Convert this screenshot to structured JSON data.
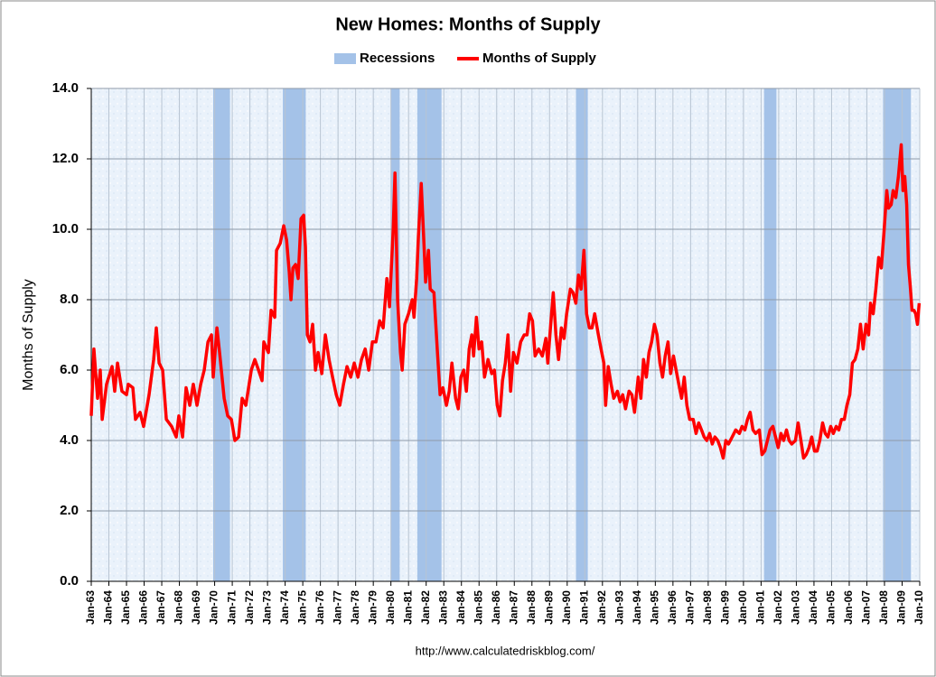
{
  "chart_data": {
    "type": "line",
    "title": "New Homes: Months of Supply",
    "y_label": "Months of Supply",
    "source": "http://www.calculatedriskblog.com/",
    "grid": true,
    "xlim": [
      1963,
      2010
    ],
    "xticks": [
      {
        "value": 1963,
        "label": "Jan-63"
      },
      {
        "value": 1964,
        "label": "Jan-64"
      },
      {
        "value": 1965,
        "label": "Jan-65"
      },
      {
        "value": 1966,
        "label": "Jan-66"
      },
      {
        "value": 1967,
        "label": "Jan-67"
      },
      {
        "value": 1968,
        "label": "Jan-68"
      },
      {
        "value": 1969,
        "label": "Jan-69"
      },
      {
        "value": 1970,
        "label": "Jan-70"
      },
      {
        "value": 1971,
        "label": "Jan-71"
      },
      {
        "value": 1972,
        "label": "Jan-72"
      },
      {
        "value": 1973,
        "label": "Jan-73"
      },
      {
        "value": 1974,
        "label": "Jan-74"
      },
      {
        "value": 1975,
        "label": "Jan-75"
      },
      {
        "value": 1976,
        "label": "Jan-76"
      },
      {
        "value": 1977,
        "label": "Jan-77"
      },
      {
        "value": 1978,
        "label": "Jan-78"
      },
      {
        "value": 1979,
        "label": "Jan-79"
      },
      {
        "value": 1980,
        "label": "Jan-80"
      },
      {
        "value": 1981,
        "label": "Jan-81"
      },
      {
        "value": 1982,
        "label": "Jan-82"
      },
      {
        "value": 1983,
        "label": "Jan-83"
      },
      {
        "value": 1984,
        "label": "Jan-84"
      },
      {
        "value": 1985,
        "label": "Jan-85"
      },
      {
        "value": 1986,
        "label": "Jan-86"
      },
      {
        "value": 1987,
        "label": "Jan-87"
      },
      {
        "value": 1988,
        "label": "Jan-88"
      },
      {
        "value": 1989,
        "label": "Jan-89"
      },
      {
        "value": 1990,
        "label": "Jan-90"
      },
      {
        "value": 1991,
        "label": "Jan-91"
      },
      {
        "value": 1992,
        "label": "Jan-92"
      },
      {
        "value": 1993,
        "label": "Jan-93"
      },
      {
        "value": 1994,
        "label": "Jan-94"
      },
      {
        "value": 1995,
        "label": "Jan-95"
      },
      {
        "value": 1996,
        "label": "Jan-96"
      },
      {
        "value": 1997,
        "label": "Jan-97"
      },
      {
        "value": 1998,
        "label": "Jan-98"
      },
      {
        "value": 1999,
        "label": "Jan-99"
      },
      {
        "value": 2000,
        "label": "Jan-00"
      },
      {
        "value": 2001,
        "label": "Jan-01"
      },
      {
        "value": 2002,
        "label": "Jan-02"
      },
      {
        "value": 2003,
        "label": "Jan-03"
      },
      {
        "value": 2004,
        "label": "Jan-04"
      },
      {
        "value": 2005,
        "label": "Jan-05"
      },
      {
        "value": 2006,
        "label": "Jan-06"
      },
      {
        "value": 2007,
        "label": "Jan-07"
      },
      {
        "value": 2008,
        "label": "Jan-08"
      },
      {
        "value": 2009,
        "label": "Jan-09"
      },
      {
        "value": 2010,
        "label": "Jan-10"
      }
    ],
    "ylim": [
      0,
      14
    ],
    "yticks": [
      {
        "value": 0,
        "label": "0.0"
      },
      {
        "value": 2,
        "label": "2.0"
      },
      {
        "value": 4,
        "label": "4.0"
      },
      {
        "value": 6,
        "label": "6.0"
      },
      {
        "value": 8,
        "label": "8.0"
      },
      {
        "value": 10,
        "label": "10.0"
      },
      {
        "value": 12,
        "label": "12.0"
      },
      {
        "value": 14,
        "label": "14.0"
      }
    ],
    "recessions": {
      "name": "Recessions",
      "color": "#a4c2e8",
      "periods": [
        [
          1969.92,
          1970.87
        ],
        [
          1973.87,
          1975.17
        ],
        [
          1980.0,
          1980.5
        ],
        [
          1981.5,
          1982.87
        ],
        [
          1990.5,
          1991.17
        ],
        [
          2001.17,
          2001.87
        ],
        [
          2007.92,
          2009.5
        ]
      ]
    },
    "x": [
      1963.0,
      1963.15,
      1963.36,
      1963.51,
      1963.62,
      1963.87,
      1964.18,
      1964.33,
      1964.49,
      1964.74,
      1965.0,
      1965.1,
      1965.36,
      1965.51,
      1965.77,
      1965.97,
      1966.28,
      1966.54,
      1966.69,
      1966.85,
      1967.05,
      1967.26,
      1967.56,
      1967.82,
      1967.97,
      1968.18,
      1968.38,
      1968.59,
      1968.79,
      1969.0,
      1969.21,
      1969.41,
      1969.62,
      1969.82,
      1969.92,
      1970.13,
      1970.28,
      1970.54,
      1970.74,
      1970.95,
      1971.15,
      1971.36,
      1971.56,
      1971.77,
      1972.08,
      1972.28,
      1972.49,
      1972.69,
      1972.79,
      1973.05,
      1973.2,
      1973.41,
      1973.51,
      1973.72,
      1973.92,
      1974.08,
      1974.23,
      1974.33,
      1974.44,
      1974.59,
      1974.74,
      1974.9,
      1975.05,
      1975.15,
      1975.26,
      1975.41,
      1975.56,
      1975.72,
      1975.87,
      1976.08,
      1976.28,
      1976.49,
      1976.69,
      1976.9,
      1977.1,
      1977.31,
      1977.51,
      1977.72,
      1977.92,
      1978.13,
      1978.33,
      1978.54,
      1978.74,
      1978.95,
      1979.15,
      1979.36,
      1979.56,
      1979.77,
      1979.92,
      1980.13,
      1980.23,
      1980.38,
      1980.54,
      1980.64,
      1980.79,
      1981.0,
      1981.21,
      1981.31,
      1981.46,
      1981.56,
      1981.72,
      1981.82,
      1981.97,
      1982.13,
      1982.23,
      1982.44,
      1982.64,
      1982.79,
      1982.95,
      1983.15,
      1983.31,
      1983.46,
      1983.67,
      1983.82,
      1983.97,
      1984.13,
      1984.28,
      1984.44,
      1984.59,
      1984.69,
      1984.85,
      1985.0,
      1985.15,
      1985.31,
      1985.51,
      1985.72,
      1985.87,
      1986.03,
      1986.18,
      1986.33,
      1986.49,
      1986.64,
      1986.79,
      1986.95,
      1987.15,
      1987.36,
      1987.56,
      1987.72,
      1987.87,
      1988.03,
      1988.18,
      1988.38,
      1988.59,
      1988.79,
      1988.9,
      1989.05,
      1989.21,
      1989.36,
      1989.51,
      1989.67,
      1989.82,
      1989.97,
      1990.18,
      1990.33,
      1990.49,
      1990.64,
      1990.79,
      1990.95,
      1991.1,
      1991.26,
      1991.41,
      1991.56,
      1991.77,
      1991.92,
      1992.08,
      1992.18,
      1992.33,
      1992.49,
      1992.64,
      1992.85,
      1993.0,
      1993.15,
      1993.31,
      1993.51,
      1993.67,
      1993.82,
      1994.03,
      1994.18,
      1994.33,
      1994.49,
      1994.64,
      1994.79,
      1994.95,
      1995.1,
      1995.26,
      1995.41,
      1995.56,
      1995.72,
      1995.87,
      1996.03,
      1996.18,
      1996.33,
      1996.49,
      1996.64,
      1996.79,
      1996.95,
      1997.15,
      1997.31,
      1997.46,
      1997.62,
      1997.77,
      1997.92,
      1998.08,
      1998.23,
      1998.38,
      1998.54,
      1998.69,
      1998.85,
      1999.0,
      1999.15,
      1999.36,
      1999.56,
      1999.77,
      1999.92,
      2000.08,
      2000.23,
      2000.38,
      2000.54,
      2000.69,
      2000.9,
      2001.05,
      2001.21,
      2001.36,
      2001.51,
      2001.67,
      2001.82,
      2001.97,
      2002.13,
      2002.28,
      2002.44,
      2002.59,
      2002.74,
      2002.95,
      2003.1,
      2003.26,
      2003.41,
      2003.56,
      2003.72,
      2003.87,
      2004.03,
      2004.18,
      2004.33,
      2004.49,
      2004.64,
      2004.79,
      2004.95,
      2005.1,
      2005.26,
      2005.41,
      2005.56,
      2005.72,
      2005.87,
      2006.03,
      2006.18,
      2006.33,
      2006.49,
      2006.64,
      2006.79,
      2006.95,
      2007.1,
      2007.21,
      2007.36,
      2007.51,
      2007.67,
      2007.82,
      2007.97,
      2008.13,
      2008.23,
      2008.38,
      2008.49,
      2008.64,
      2008.79,
      2008.95,
      2009.05,
      2009.15,
      2009.26,
      2009.36,
      2009.46,
      2009.56,
      2009.67,
      2009.77,
      2009.87,
      2009.97
    ],
    "series": [
      {
        "name": "Months of Supply",
        "color": "#ff0000",
        "values": [
          4.7,
          6.6,
          5.2,
          6.0,
          4.6,
          5.6,
          6.1,
          5.4,
          6.2,
          5.4,
          5.3,
          5.6,
          5.5,
          4.6,
          4.8,
          4.4,
          5.3,
          6.3,
          7.2,
          6.2,
          6.0,
          4.6,
          4.4,
          4.1,
          4.7,
          4.1,
          5.5,
          5.0,
          5.6,
          5.0,
          5.6,
          6.0,
          6.8,
          7.0,
          5.8,
          7.2,
          6.5,
          5.2,
          4.7,
          4.6,
          4.0,
          4.1,
          5.2,
          5.0,
          6.0,
          6.3,
          6.0,
          5.7,
          6.8,
          6.5,
          7.7,
          7.5,
          9.4,
          9.6,
          10.1,
          9.7,
          8.8,
          8.0,
          8.9,
          9.0,
          8.6,
          10.3,
          10.4,
          9.5,
          7.0,
          6.8,
          7.3,
          6.0,
          6.5,
          5.9,
          7.0,
          6.3,
          5.8,
          5.3,
          5.0,
          5.6,
          6.1,
          5.8,
          6.2,
          5.8,
          6.3,
          6.6,
          6.0,
          6.8,
          6.8,
          7.4,
          7.2,
          8.6,
          7.8,
          10.0,
          11.6,
          8.0,
          6.5,
          6.0,
          7.3,
          7.6,
          8.0,
          7.5,
          8.6,
          9.8,
          11.3,
          10.2,
          8.5,
          9.4,
          8.3,
          8.2,
          6.5,
          5.3,
          5.5,
          5.0,
          5.4,
          6.2,
          5.2,
          4.9,
          5.8,
          6.0,
          5.4,
          6.6,
          7.0,
          6.4,
          7.5,
          6.6,
          6.8,
          5.8,
          6.3,
          5.9,
          6.0,
          5.0,
          4.7,
          5.7,
          6.2,
          7.0,
          5.4,
          6.5,
          6.2,
          6.8,
          7.0,
          7.0,
          7.6,
          7.4,
          6.4,
          6.6,
          6.4,
          6.9,
          6.2,
          7.2,
          8.2,
          7.0,
          6.3,
          7.2,
          6.9,
          7.6,
          8.3,
          8.2,
          7.9,
          8.7,
          8.3,
          9.4,
          7.6,
          7.2,
          7.2,
          7.6,
          7.0,
          6.6,
          6.2,
          5.0,
          6.1,
          5.6,
          5.2,
          5.4,
          5.1,
          5.3,
          4.9,
          5.4,
          5.3,
          4.8,
          5.8,
          5.2,
          6.3,
          5.8,
          6.5,
          6.8,
          7.3,
          7.0,
          6.2,
          5.8,
          6.4,
          6.8,
          5.9,
          6.4,
          6.0,
          5.6,
          5.2,
          5.8,
          5.0,
          4.6,
          4.6,
          4.2,
          4.5,
          4.3,
          4.1,
          4.0,
          4.2,
          3.9,
          4.1,
          4.0,
          3.8,
          3.5,
          4.0,
          3.9,
          4.1,
          4.3,
          4.2,
          4.4,
          4.3,
          4.6,
          4.8,
          4.3,
          4.2,
          4.3,
          3.6,
          3.7,
          4.0,
          4.3,
          4.4,
          4.1,
          3.8,
          4.2,
          4.0,
          4.3,
          4.0,
          3.9,
          4.0,
          4.5,
          4.0,
          3.5,
          3.6,
          3.8,
          4.1,
          3.7,
          3.7,
          4.0,
          4.5,
          4.2,
          4.1,
          4.4,
          4.2,
          4.4,
          4.3,
          4.6,
          4.6,
          5.0,
          5.3,
          6.2,
          6.3,
          6.6,
          7.3,
          6.6,
          7.3,
          7.0,
          7.9,
          7.6,
          8.3,
          9.2,
          8.9,
          9.9,
          11.1,
          10.6,
          10.7,
          11.1,
          10.9,
          11.5,
          12.4,
          11.1,
          11.5,
          10.7,
          9.0,
          8.4,
          7.7,
          7.7,
          7.6,
          7.3,
          7.9
        ]
      }
    ]
  }
}
